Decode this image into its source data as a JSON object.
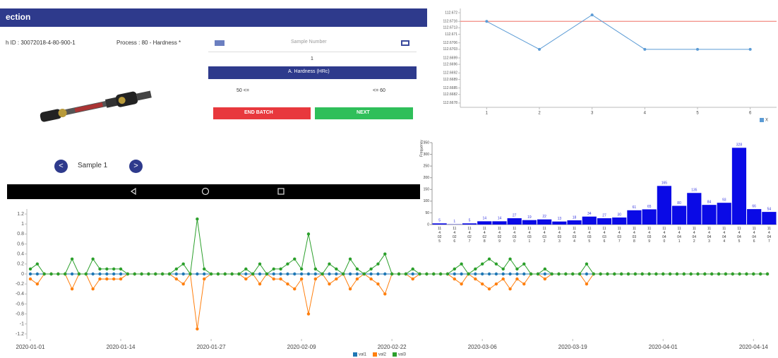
{
  "app": {
    "header_title": "ection",
    "batch_id": "h ID : 30072018-4-80-900-1",
    "process": "Process : 80 - Hardness *",
    "sample_number_placeholder": "Sample Number",
    "sample_number_value": "1",
    "parameter": "A. Hardness (HRc)",
    "lower_limit": "50 <=",
    "upper_limit": "<= 60",
    "end_batch": "END BATCH",
    "next": "NEXT",
    "sample_label": "Sample 1"
  },
  "chart_data": [
    {
      "type": "line",
      "x": [
        1,
        2,
        3,
        4,
        5,
        6
      ],
      "xlim": [
        0.5,
        6.5
      ],
      "xticks": [
        1,
        2,
        3,
        4,
        5,
        6
      ],
      "series": [
        {
          "name": "X",
          "color": "#5b9bd5",
          "values": [
            112.6716,
            112.6703,
            112.6719,
            112.6703,
            112.6703,
            112.6703
          ]
        }
      ],
      "ylim": [
        112.6676,
        112.6722
      ],
      "yticks": [
        112.672,
        112.6716,
        112.6713,
        112.671,
        112.6706,
        112.6703,
        112.6699,
        112.6696,
        112.6692,
        112.6689,
        112.6685,
        112.6682,
        112.6678
      ],
      "reference_lines": [
        {
          "value": 112.6716,
          "color": "#f28b82"
        }
      ],
      "markers": true,
      "legend": "bottom-right"
    },
    {
      "type": "bar",
      "ylabel": "Frequency",
      "color": "#0a0ae6",
      "categories": [
        "11 4 02 5",
        "11 4 02 6",
        "11 4 02 7",
        "11 4 02 8",
        "11 4 02 9",
        "11 4 03 0",
        "11 4 03 1",
        "11 4 03 2",
        "11 4 03 3",
        "11 4 03 4",
        "11 4 03 5",
        "11 4 03 6",
        "11 4 03 7",
        "11 4 03 8",
        "11 4 03 9",
        "11 4 04 0",
        "11 4 04 1",
        "11 4 04 2",
        "11 4 04 3",
        "11 4 04 4",
        "11 4 04 5",
        "11 4 04 6",
        "11 4 04 7"
      ],
      "values": [
        5,
        1,
        5,
        14,
        14,
        27,
        19,
        22,
        13,
        18,
        34,
        27,
        30,
        61,
        65,
        165,
        80,
        135,
        84,
        93,
        328,
        66,
        54
      ],
      "ylim": [
        0,
        350
      ],
      "yticks": [
        0,
        50,
        100,
        150,
        200,
        250,
        300,
        350
      ]
    },
    {
      "type": "line",
      "markers": true,
      "legend": "bottom",
      "xlim": [
        "2020-01-01",
        "2020-04-16"
      ],
      "xticks": [
        "2020-01-01",
        "2020-01-14",
        "2020-01-27",
        "2020-02-09",
        "2020-02-22",
        "2020-03-06",
        "2020-03-19",
        "2020-04-01",
        "2020-04-14"
      ],
      "x": [
        "2020-01-01",
        "2020-01-02",
        "2020-01-03",
        "2020-01-04",
        "2020-01-05",
        "2020-01-06",
        "2020-01-07",
        "2020-01-08",
        "2020-01-09",
        "2020-01-10",
        "2020-01-11",
        "2020-01-12",
        "2020-01-13",
        "2020-01-14",
        "2020-01-15",
        "2020-01-16",
        "2020-01-17",
        "2020-01-18",
        "2020-01-19",
        "2020-01-20",
        "2020-01-21",
        "2020-01-22",
        "2020-01-23",
        "2020-01-24",
        "2020-01-25",
        "2020-01-26",
        "2020-01-27",
        "2020-01-28",
        "2020-01-29",
        "2020-01-30",
        "2020-01-31",
        "2020-02-01",
        "2020-02-02",
        "2020-02-03",
        "2020-02-04",
        "2020-02-05",
        "2020-02-06",
        "2020-02-07",
        "2020-02-08",
        "2020-02-09",
        "2020-02-10",
        "2020-02-11",
        "2020-02-12",
        "2020-02-13",
        "2020-02-14",
        "2020-02-15",
        "2020-02-16",
        "2020-02-17",
        "2020-02-18",
        "2020-02-19",
        "2020-02-20",
        "2020-02-21",
        "2020-02-22",
        "2020-02-23",
        "2020-02-24",
        "2020-02-25",
        "2020-02-26",
        "2020-02-27",
        "2020-02-28",
        "2020-02-29",
        "2020-03-01",
        "2020-03-02",
        "2020-03-03",
        "2020-03-04",
        "2020-03-05",
        "2020-03-06",
        "2020-03-07",
        "2020-03-08",
        "2020-03-09",
        "2020-03-10",
        "2020-03-11",
        "2020-03-12",
        "2020-03-13",
        "2020-03-14",
        "2020-03-15",
        "2020-03-16",
        "2020-03-17",
        "2020-03-18",
        "2020-03-19",
        "2020-03-20",
        "2020-03-21",
        "2020-03-22",
        "2020-03-23",
        "2020-03-24",
        "2020-03-25",
        "2020-03-26",
        "2020-03-27",
        "2020-03-28",
        "2020-03-29",
        "2020-03-30",
        "2020-03-31",
        "2020-04-01",
        "2020-04-02",
        "2020-04-03",
        "2020-04-04",
        "2020-04-05",
        "2020-04-06",
        "2020-04-07",
        "2020-04-08",
        "2020-04-09",
        "2020-04-10",
        "2020-04-11",
        "2020-04-12",
        "2020-04-13",
        "2020-04-14",
        "2020-04-15",
        "2020-04-16"
      ],
      "series": [
        {
          "name": "val1",
          "color": "#1f77b4",
          "values": [
            0,
            0,
            0,
            0,
            0,
            0,
            0,
            0,
            0,
            0,
            0,
            0,
            0,
            0,
            0,
            0,
            0,
            0,
            0,
            0,
            0,
            0,
            0,
            0,
            0,
            0,
            0,
            0,
            0,
            0,
            0,
            0,
            0,
            0,
            0,
            0,
            0,
            0,
            0,
            0,
            0,
            0,
            0,
            0,
            0,
            0,
            0,
            0,
            0,
            0,
            0,
            0,
            0,
            0,
            0,
            0,
            0,
            0,
            0,
            0,
            0,
            0,
            0,
            0,
            0,
            0,
            0,
            0,
            0,
            0,
            0,
            0,
            0,
            0,
            0,
            0,
            0,
            0,
            0,
            0,
            0,
            0,
            0,
            0,
            0,
            0,
            0,
            0,
            0,
            0,
            0,
            0,
            0,
            0,
            0,
            0,
            0,
            0,
            0,
            0,
            0,
            0,
            0,
            0,
            0,
            0,
            0
          ]
        },
        {
          "name": "val2",
          "color": "#ff7f0e",
          "values": [
            -0.1,
            -0.2,
            0,
            0,
            0,
            0,
            -0.3,
            0,
            0,
            -0.3,
            -0.1,
            -0.1,
            -0.1,
            -0.1,
            0,
            0,
            0,
            0,
            0,
            0,
            0,
            -0.1,
            -0.2,
            0,
            -1.1,
            -0.1,
            0,
            0,
            0,
            0,
            0,
            -0.1,
            0,
            -0.2,
            0,
            -0.1,
            -0.1,
            -0.2,
            -0.3,
            -0.1,
            -0.8,
            -0.1,
            0,
            -0.2,
            -0.1,
            0,
            -0.3,
            -0.1,
            0,
            -0.1,
            -0.2,
            -0.4,
            0,
            0,
            0,
            -0.1,
            0,
            0,
            0,
            0,
            0,
            -0.1,
            -0.2,
            0,
            -0.1,
            -0.2,
            -0.3,
            -0.2,
            -0.1,
            -0.3,
            -0.1,
            -0.2,
            0,
            0,
            -0.1,
            0,
            0,
            0,
            0,
            0,
            -0.2,
            0,
            0,
            0,
            0,
            0,
            0,
            0,
            0,
            0,
            0,
            0,
            0,
            0,
            0,
            0,
            0,
            0,
            0,
            0,
            0,
            0,
            0,
            0,
            0,
            0,
            0
          ]
        },
        {
          "name": "val3",
          "color": "#2ca02c",
          "values": [
            0.1,
            0.2,
            0,
            0,
            0,
            0,
            0.3,
            0,
            0,
            0.3,
            0.1,
            0.1,
            0.1,
            0.1,
            0,
            0,
            0,
            0,
            0,
            0,
            0,
            0.1,
            0.2,
            0,
            1.1,
            0.1,
            0,
            0,
            0,
            0,
            0,
            0.1,
            0,
            0.2,
            0,
            0.1,
            0.1,
            0.2,
            0.3,
            0.1,
            0.8,
            0.1,
            0,
            0.2,
            0.1,
            0,
            0.3,
            0.1,
            0,
            0.1,
            0.2,
            0.4,
            0,
            0,
            0,
            0.1,
            0,
            0,
            0,
            0,
            0,
            0.1,
            0.2,
            0,
            0.1,
            0.2,
            0.3,
            0.2,
            0.1,
            0.3,
            0.1,
            0.2,
            0,
            0,
            0.1,
            0,
            0,
            0,
            0,
            0,
            0.2,
            0,
            0,
            0,
            0,
            0,
            0,
            0,
            0,
            0,
            0,
            0,
            0,
            0,
            0,
            0,
            0,
            0,
            0,
            0,
            0,
            0,
            0,
            0,
            0,
            0,
            0
          ]
        }
      ],
      "ylim": [
        -1.3,
        1.3
      ],
      "yticks": [
        1.2,
        1,
        0.8,
        0.6,
        0.4,
        0.2,
        0,
        -0.2,
        -0.4,
        -0.6,
        -0.8,
        -1,
        -1.2
      ]
    }
  ]
}
